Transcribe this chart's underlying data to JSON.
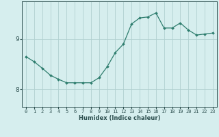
{
  "title": "",
  "xlabel": "Humidex (Indice chaleur)",
  "ylabel": "",
  "x": [
    0,
    1,
    2,
    3,
    4,
    5,
    6,
    7,
    8,
    9,
    10,
    11,
    12,
    13,
    14,
    15,
    16,
    17,
    18,
    19,
    20,
    21,
    22,
    23
  ],
  "y": [
    8.65,
    8.55,
    8.42,
    8.28,
    8.2,
    8.13,
    8.13,
    8.13,
    8.13,
    8.23,
    8.45,
    8.73,
    8.9,
    9.3,
    9.42,
    9.44,
    9.52,
    9.22,
    9.22,
    9.32,
    9.18,
    9.08,
    9.1,
    9.12
  ],
  "line_color": "#2e7d6e",
  "marker": "D",
  "marker_size": 2.0,
  "background_color": "#d6eeee",
  "grid_color": "#b0d0d0",
  "tick_color": "#2e5050",
  "ylim": [
    7.65,
    9.75
  ],
  "ytick_values": [
    8,
    9
  ],
  "xlim": [
    -0.5,
    23.5
  ],
  "xtick_fontsize": 5.0,
  "ytick_fontsize": 6.5,
  "xlabel_fontsize": 6.0,
  "linewidth": 0.9
}
